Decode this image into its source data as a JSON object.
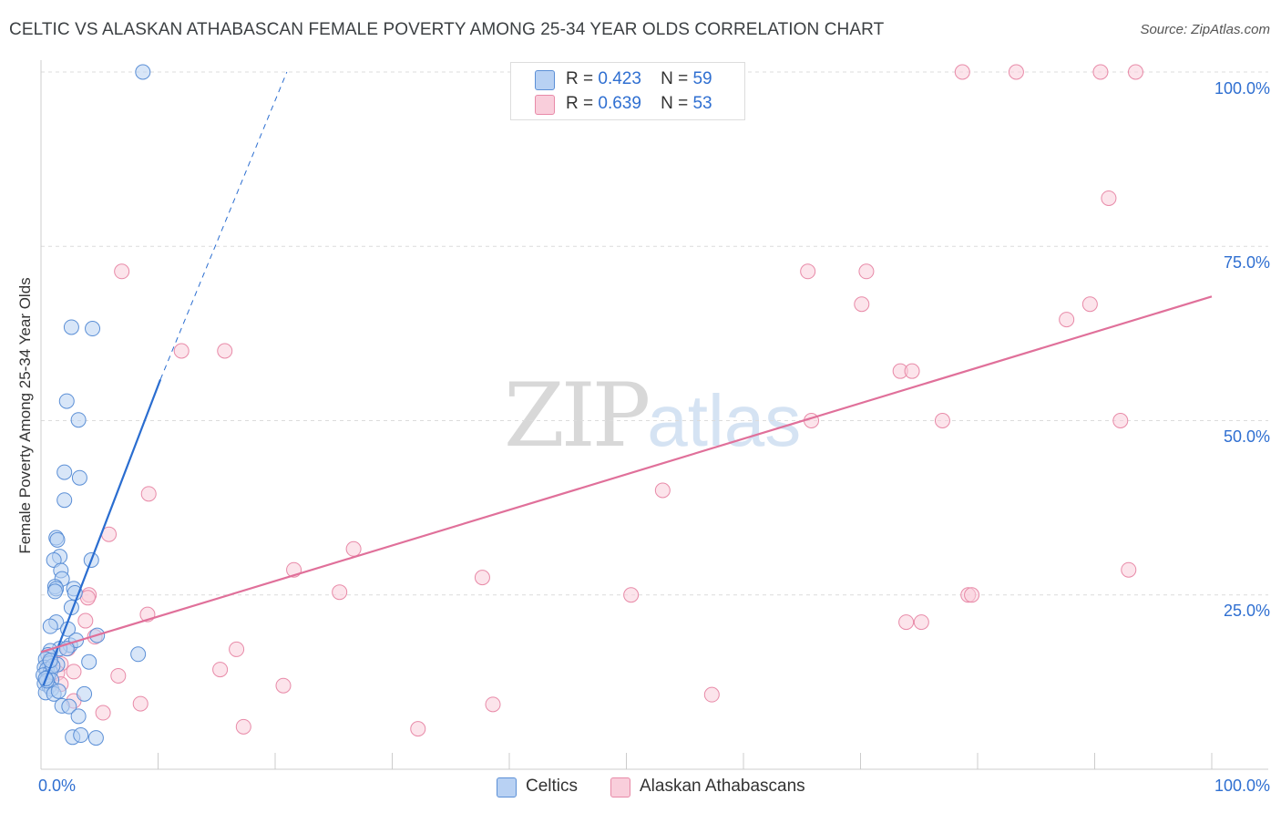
{
  "title": "CELTIC VS ALASKAN ATHABASCAN FEMALE POVERTY AMONG 25-34 YEAR OLDS CORRELATION CHART",
  "source": "Source: ZipAtlas.com",
  "watermark": {
    "zip": "ZIP",
    "atlas": "atlas"
  },
  "legend_top": {
    "rows": [
      {
        "r_label": "R =",
        "r_value": "0.423",
        "n_label": "N =",
        "n_value": "59"
      },
      {
        "r_label": "R =",
        "r_value": "0.639",
        "n_label": "N =",
        "n_value": "53"
      }
    ]
  },
  "legend_bottom": {
    "series1": "Celtics",
    "series2": "Alaskan Athabascans"
  },
  "colors": {
    "blue_fill": "#b8d1f3",
    "blue_stroke": "#5b8fd6",
    "blue_line": "#2a6dd0",
    "pink_fill": "#f9cedb",
    "pink_stroke": "#e88aa8",
    "pink_line": "#e0709a",
    "grid": "#dcdcdc",
    "tick_text": "#2f6fd1"
  },
  "chart_data": {
    "type": "scatter",
    "title": "CELTIC VS ALASKAN ATHABASCAN FEMALE POVERTY AMONG 25-34 YEAR OLDS CORRELATION CHART",
    "xlabel": "",
    "ylabel": "Female Poverty Among 25-34 Year Olds",
    "xlim": [
      0,
      100
    ],
    "ylim": [
      0,
      100
    ],
    "x_tick_labels": [
      "0.0%",
      "100.0%"
    ],
    "y_tick_labels": [
      "25.0%",
      "50.0%",
      "75.0%",
      "100.0%"
    ],
    "y_tick_values": [
      25,
      50,
      75,
      100
    ],
    "series": [
      {
        "name": "Celtics",
        "r": 0.423,
        "n": 59,
        "trend": {
          "x0": 0.2,
          "y0": 12.0,
          "x1": 10.2,
          "y1": 55.9,
          "dash_to_x": 21.0,
          "dash_to_y": 100
        },
        "points": [
          [
            8.7,
            100
          ],
          [
            2.6,
            63.4
          ],
          [
            4.4,
            63.2
          ],
          [
            2.2,
            52.8
          ],
          [
            3.2,
            50.1
          ],
          [
            2.0,
            42.6
          ],
          [
            3.3,
            41.8
          ],
          [
            2.0,
            38.6
          ],
          [
            1.3,
            33.2
          ],
          [
            1.4,
            32.9
          ],
          [
            1.6,
            30.5
          ],
          [
            1.1,
            30.0
          ],
          [
            4.3,
            30.0
          ],
          [
            1.7,
            28.5
          ],
          [
            1.8,
            27.3
          ],
          [
            1.2,
            26.2
          ],
          [
            1.3,
            25.9
          ],
          [
            2.8,
            25.9
          ],
          [
            1.2,
            25.5
          ],
          [
            2.9,
            25.3
          ],
          [
            2.6,
            23.2
          ],
          [
            1.3,
            21.1
          ],
          [
            0.8,
            20.5
          ],
          [
            2.3,
            20.1
          ],
          [
            4.8,
            19.2
          ],
          [
            2.5,
            17.8
          ],
          [
            3.0,
            18.5
          ],
          [
            1.6,
            17.3
          ],
          [
            2.2,
            17.3
          ],
          [
            0.8,
            17.0
          ],
          [
            0.6,
            16.4
          ],
          [
            8.3,
            16.5
          ],
          [
            0.4,
            15.8
          ],
          [
            0.7,
            15.2
          ],
          [
            1.4,
            15.0
          ],
          [
            4.1,
            15.4
          ],
          [
            0.3,
            14.6
          ],
          [
            0.5,
            14.3
          ],
          [
            0.8,
            14.0
          ],
          [
            0.2,
            13.5
          ],
          [
            0.6,
            13.2
          ],
          [
            0.9,
            12.8
          ],
          [
            0.3,
            12.3
          ],
          [
            0.7,
            11.9
          ],
          [
            0.9,
            11.5
          ],
          [
            0.4,
            11.0
          ],
          [
            1.1,
            10.8
          ],
          [
            3.7,
            10.8
          ],
          [
            1.8,
            9.1
          ],
          [
            2.4,
            9.0
          ],
          [
            3.2,
            7.6
          ],
          [
            2.7,
            4.6
          ],
          [
            3.4,
            4.9
          ],
          [
            4.7,
            4.5
          ],
          [
            0.5,
            12.7
          ],
          [
            1.0,
            14.8
          ],
          [
            0.4,
            13.0
          ],
          [
            1.5,
            11.2
          ],
          [
            0.8,
            15.6
          ]
        ]
      },
      {
        "name": "Alaskan Athabascans",
        "r": 0.639,
        "n": 53,
        "trend": {
          "x0": 0.0,
          "y0": 16.8,
          "x1": 100.0,
          "y1": 67.8
        },
        "points": [
          [
            78.7,
            100
          ],
          [
            83.3,
            100
          ],
          [
            90.5,
            100
          ],
          [
            93.5,
            100
          ],
          [
            91.2,
            81.9
          ],
          [
            6.9,
            71.4
          ],
          [
            65.5,
            71.4
          ],
          [
            70.5,
            71.4
          ],
          [
            70.1,
            66.7
          ],
          [
            89.6,
            66.7
          ],
          [
            87.6,
            64.5
          ],
          [
            12.0,
            60.0
          ],
          [
            15.7,
            60.0
          ],
          [
            73.4,
            57.1
          ],
          [
            74.4,
            57.1
          ],
          [
            65.8,
            50.0
          ],
          [
            77.0,
            50.0
          ],
          [
            92.2,
            50.0
          ],
          [
            53.1,
            40.0
          ],
          [
            9.2,
            39.5
          ],
          [
            5.8,
            33.7
          ],
          [
            26.7,
            31.6
          ],
          [
            92.9,
            28.6
          ],
          [
            21.6,
            28.6
          ],
          [
            37.7,
            27.5
          ],
          [
            25.5,
            25.4
          ],
          [
            4.1,
            25.0
          ],
          [
            50.4,
            25.0
          ],
          [
            79.2,
            25.0
          ],
          [
            79.5,
            25.0
          ],
          [
            4.0,
            24.6
          ],
          [
            9.1,
            22.2
          ],
          [
            3.8,
            21.3
          ],
          [
            73.9,
            21.1
          ],
          [
            75.2,
            21.1
          ],
          [
            4.6,
            19.0
          ],
          [
            2.3,
            17.3
          ],
          [
            16.7,
            17.2
          ],
          [
            0.8,
            16.0
          ],
          [
            1.7,
            15.1
          ],
          [
            15.3,
            14.3
          ],
          [
            2.8,
            14.0
          ],
          [
            1.4,
            13.8
          ],
          [
            6.6,
            13.4
          ],
          [
            1.7,
            12.2
          ],
          [
            20.7,
            12.0
          ],
          [
            57.3,
            10.7
          ],
          [
            2.8,
            9.8
          ],
          [
            8.5,
            9.4
          ],
          [
            38.6,
            9.3
          ],
          [
            5.3,
            8.1
          ],
          [
            17.3,
            6.1
          ],
          [
            32.2,
            5.8
          ]
        ]
      }
    ]
  }
}
